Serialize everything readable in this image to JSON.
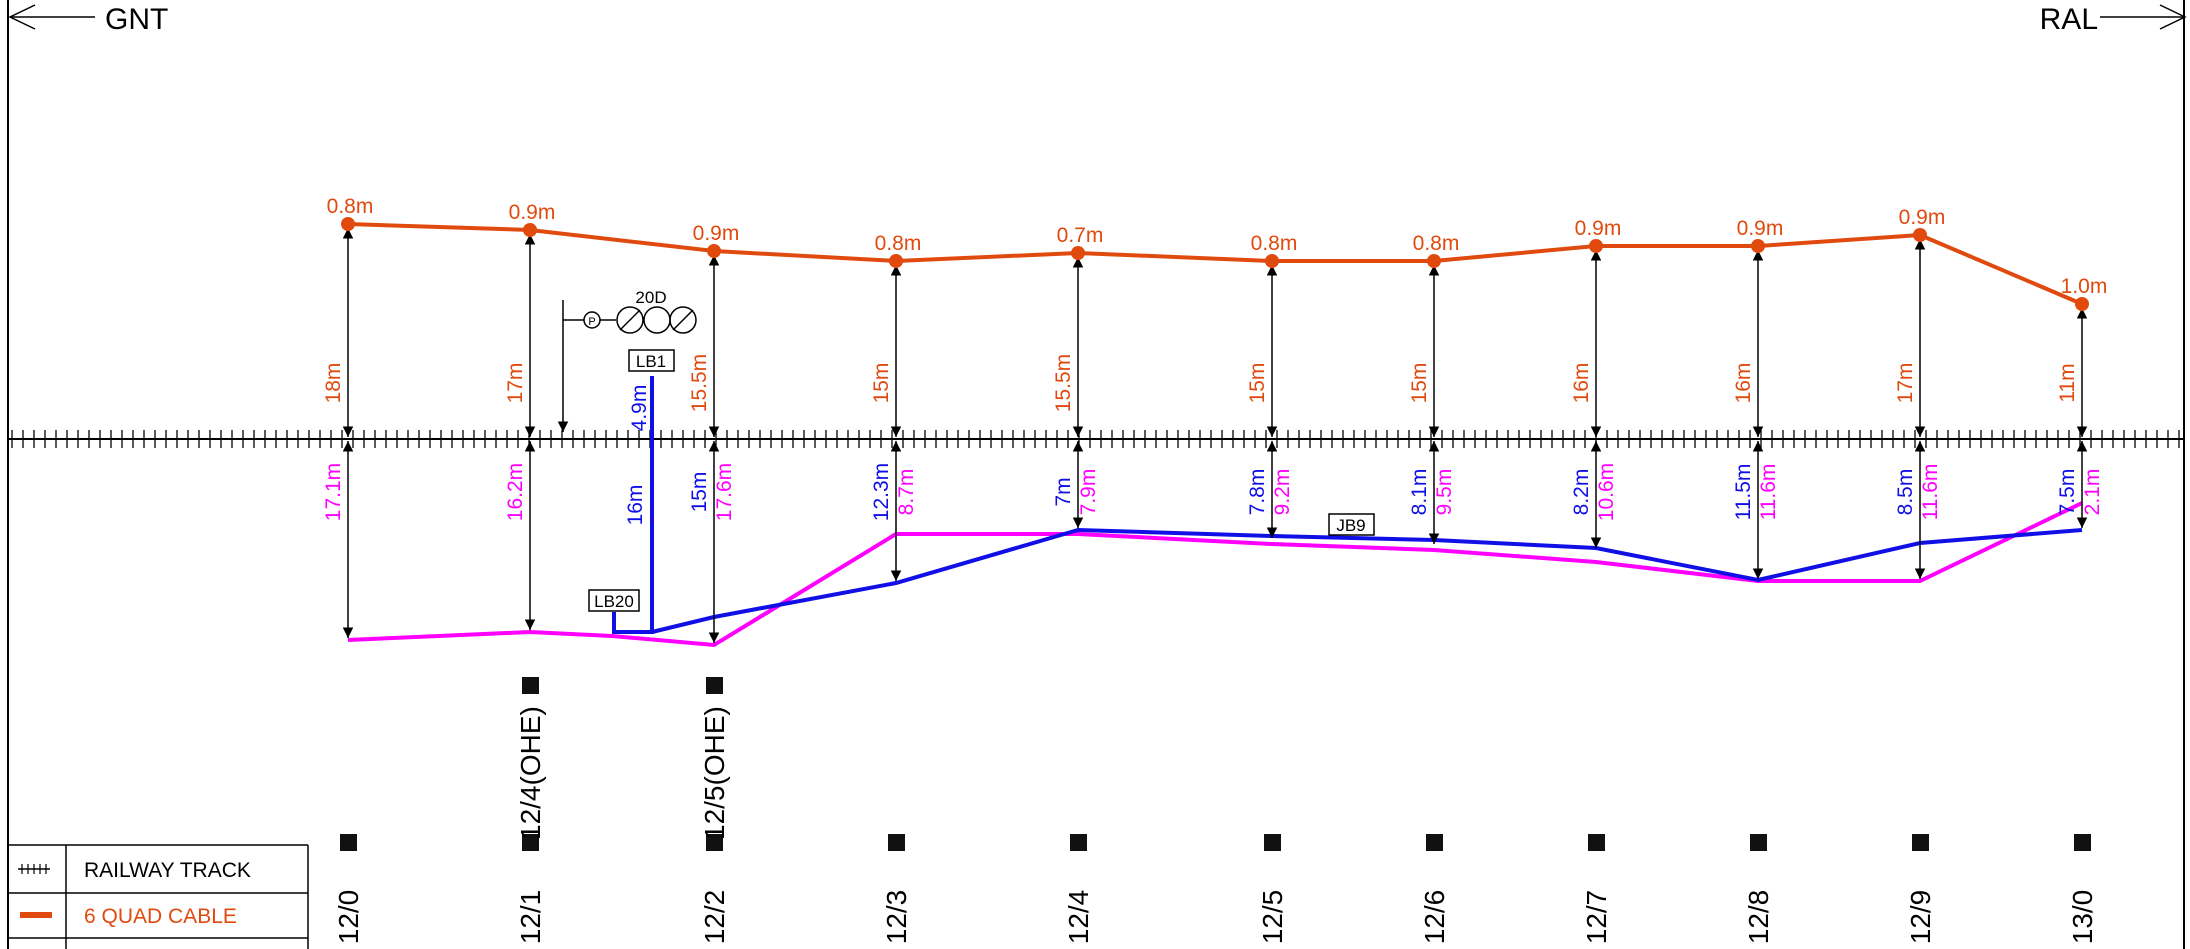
{
  "directions": {
    "left": "GNT",
    "right": "RAL"
  },
  "colors": {
    "quad_cable": "#e04a0f",
    "blue_cable": "#1010e6",
    "magenta_cable": "#ff00ff",
    "track": "#000000"
  },
  "labels": {
    "signal": "20D",
    "lb1": "LB1",
    "lb20": "LB20",
    "jb9": "JB9",
    "lb1_dist": "4.9m",
    "lb_to_track": "16m"
  },
  "posts": [
    {
      "km": "12/0",
      "top_depth": "0.8m",
      "top_dist": "18m",
      "bot_dist": "17.1m"
    },
    {
      "km": "12/1",
      "top_depth": "0.9m",
      "top_dist": "17m",
      "bot_dist": "16.2m"
    },
    {
      "km": "12/2",
      "top_depth": "0.9m",
      "top_dist": "15.5m",
      "blue_dist": "15m",
      "bot_dist": "17.6m"
    },
    {
      "km": "12/3",
      "top_depth": "0.8m",
      "top_dist": "15m",
      "blue_dist": "12.3m",
      "bot_dist": "8.7m"
    },
    {
      "km": "12/4",
      "top_depth": "0.7m",
      "top_dist": "15.5m",
      "blue_dist": "7m",
      "bot_dist": "7.9m"
    },
    {
      "km": "12/5",
      "top_depth": "0.8m",
      "top_dist": "15m",
      "blue_dist": "7.8m",
      "bot_dist": "9.2m"
    },
    {
      "km": "12/6",
      "top_depth": "0.8m",
      "top_dist": "15m",
      "blue_dist": "8.1m",
      "bot_dist": "9.5m"
    },
    {
      "km": "12/7",
      "top_depth": "0.9m",
      "top_dist": "16m",
      "blue_dist": "8.2m",
      "bot_dist": "10.6m"
    },
    {
      "km": "12/8",
      "top_depth": "0.9m",
      "top_dist": "16m",
      "blue_dist": "11.5m",
      "bot_dist": "11.6m"
    },
    {
      "km": "12/9",
      "top_depth": "0.9m",
      "top_dist": "17m",
      "blue_dist": "8.5m",
      "bot_dist": "11.6m"
    },
    {
      "km": "13/0",
      "top_depth": "1.0m",
      "top_dist": "11m",
      "blue_dist": "7.5m",
      "bot_dist": "2.1m"
    }
  ],
  "ohe_posts": [
    {
      "label": "12/4(OHE)"
    },
    {
      "label": "12/5(OHE)"
    }
  ],
  "legend": [
    {
      "label": "RAILWAY TRACK",
      "symbol": "track"
    },
    {
      "label": "6 QUAD CABLE",
      "symbol": "quad-cable"
    }
  ]
}
